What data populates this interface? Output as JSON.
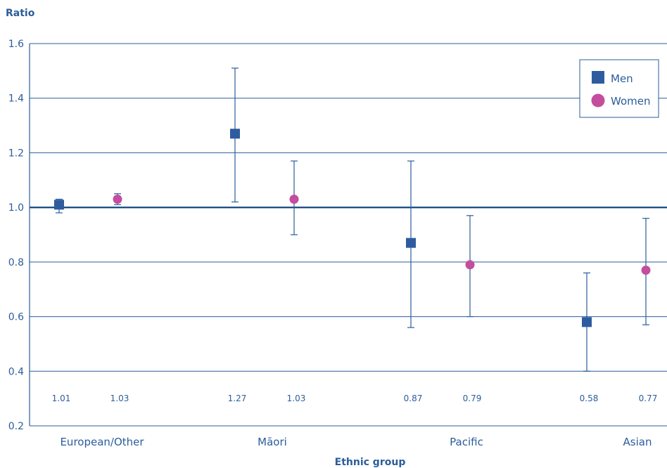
{
  "chart_data": {
    "type": "scatter",
    "ylabel": "Ratio",
    "xlabel": "Ethnic group",
    "ylim": [
      0.2,
      1.6
    ],
    "yticks": [
      0.2,
      0.4,
      0.6,
      0.8,
      1.0,
      1.2,
      1.4,
      1.6
    ],
    "ytick_labels": [
      "0.2",
      "0.4",
      "0.6",
      "0.8",
      "1.0",
      "1.2",
      "1.4",
      "1.6"
    ],
    "reference_line": 1.0,
    "grid": true,
    "legend_position": "top-right",
    "categories": [
      "European/Other",
      "Māori",
      "Pacific",
      "Asian"
    ],
    "series": [
      {
        "name": "Men",
        "marker": "square",
        "color": "#2e5c9e",
        "values": [
          1.01,
          1.27,
          0.87,
          0.58
        ],
        "lower": [
          0.98,
          1.02,
          0.56,
          0.4
        ],
        "upper": [
          1.03,
          1.51,
          1.17,
          0.76
        ],
        "labels": [
          "1.01",
          "1.27",
          "0.87",
          "0.58"
        ]
      },
      {
        "name": "Women",
        "marker": "circle",
        "color": "#c44d9e",
        "values": [
          1.03,
          1.03,
          0.79,
          0.77
        ],
        "lower": [
          1.01,
          0.9,
          0.6,
          0.57
        ],
        "upper": [
          1.05,
          1.17,
          0.97,
          0.96
        ],
        "labels": [
          "1.03",
          "1.03",
          "0.79",
          "0.77"
        ]
      }
    ]
  }
}
